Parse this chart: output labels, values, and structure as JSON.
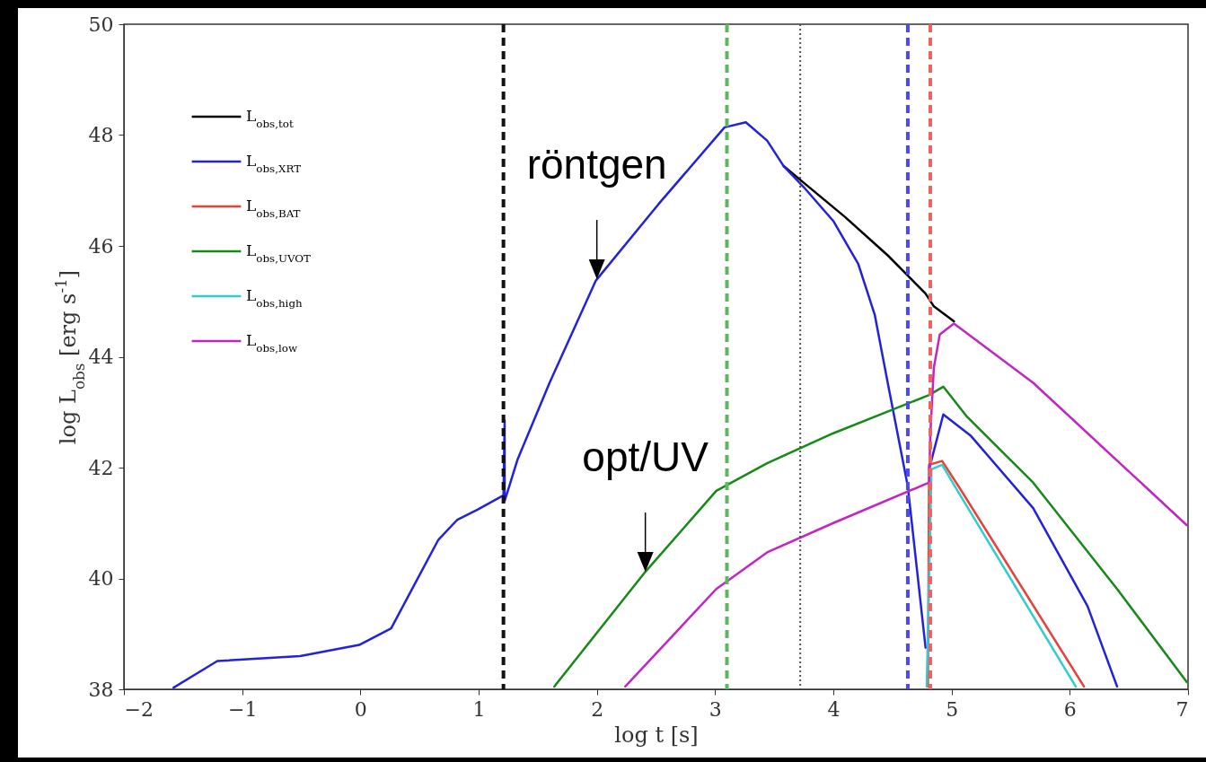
{
  "chart_data": {
    "type": "line",
    "xlabel": "log t [s]",
    "ylabel": "log L$_{obs}$ [erg s$^{-1}$]",
    "xlim": [
      -2,
      7
    ],
    "xticks": [
      -2,
      -1,
      0,
      1,
      2,
      3,
      4,
      5,
      6,
      7
    ],
    "ylim": [
      38,
      50
    ],
    "yticks": [
      38,
      40,
      42,
      44,
      46,
      48,
      50
    ],
    "legend": "top left",
    "series": [
      {
        "name": "L$_{obs,tot}$",
        "color": "#000000",
        "x": [
          3.58,
          3.75,
          4.1,
          4.46,
          4.78,
          4.85,
          5.02
        ],
        "values": [
          47.44,
          47.14,
          46.52,
          45.83,
          45.14,
          44.91,
          44.64
        ]
      },
      {
        "name": "L$_{obs,XRT}$",
        "color": "#2222dd",
        "x": [
          -1.58,
          -1.21,
          -0.51,
          -0.01,
          0.26,
          0.46,
          0.66,
          0.82,
          0.99,
          1.21,
          1.22,
          1.22,
          1.25,
          1.33,
          1.6,
          1.99,
          2.52,
          3.08,
          3.26,
          3.44,
          3.58,
          3.75,
          4.0,
          4.21,
          4.35,
          4.46,
          4.63,
          4.78,
          4.8,
          4.81,
          4.93,
          5.16,
          5.69,
          6.15,
          6.4
        ],
        "values": [
          38.03,
          38.51,
          38.6,
          38.8,
          39.1,
          39.9,
          40.7,
          41.06,
          41.24,
          41.5,
          42.85,
          41.4,
          41.6,
          42.15,
          43.53,
          45.37,
          46.75,
          48.14,
          48.23,
          47.9,
          47.44,
          47.06,
          46.45,
          45.68,
          44.76,
          43.53,
          41.66,
          38.75,
          null,
          41.97,
          42.96,
          42.58,
          41.27,
          39.5,
          38.05
        ]
      },
      {
        "name": "L$_{obs,BAT}$",
        "color": "#e8413a",
        "x": [
          4.8,
          4.81,
          4.92,
          5.06,
          6.12
        ],
        "values": [
          38.05,
          42.05,
          42.12,
          41.66,
          38.05
        ]
      },
      {
        "name": "L$_{obs,UVOT}$",
        "color": "#168a16",
        "x": [
          1.64,
          2.41,
          3.01,
          3.44,
          4.0,
          4.81,
          4.93,
          5.13,
          5.69,
          6.4,
          6.99
        ],
        "values": [
          38.05,
          40.12,
          41.58,
          42.08,
          42.62,
          43.31,
          43.46,
          42.92,
          41.73,
          39.81,
          38.13
        ]
      },
      {
        "name": "L$_{obs,high}$",
        "color": "#33cccc",
        "x": [
          4.79,
          4.83,
          4.92,
          5.06,
          6.05
        ],
        "values": [
          38.05,
          41.97,
          42.05,
          41.55,
          38.05
        ]
      },
      {
        "name": "L$_{obs,low}$",
        "color": "#c424c4",
        "x": [
          2.24,
          3.01,
          3.44,
          4.0,
          4.81,
          4.82,
          4.85,
          4.9,
          5.02,
          5.69,
          6.99
        ],
        "values": [
          38.05,
          39.81,
          40.47,
          41.0,
          41.73,
          42.6,
          43.8,
          44.4,
          44.6,
          43.53,
          40.96
        ]
      }
    ],
    "ref_lines": [
      {
        "axis": "x",
        "value": 1.21,
        "color": "#111111",
        "line_style": "dashed"
      },
      {
        "axis": "x",
        "value": 3.1,
        "color": "#5cb85c",
        "line_style": "dashed"
      },
      {
        "axis": "x",
        "value": 3.72,
        "color": "#555555",
        "line_style": "dotted"
      },
      {
        "axis": "x",
        "value": 4.63,
        "color": "#4a4aee",
        "line_style": "dashed"
      },
      {
        "axis": "x",
        "value": 4.82,
        "color": "#f06262",
        "line_style": "dashed"
      }
    ],
    "annotations": [
      {
        "text": "röntgen",
        "x": 2.0,
        "y": 45.4
      },
      {
        "text": "opt/UV",
        "x": 2.41,
        "y": 40.12
      }
    ]
  }
}
